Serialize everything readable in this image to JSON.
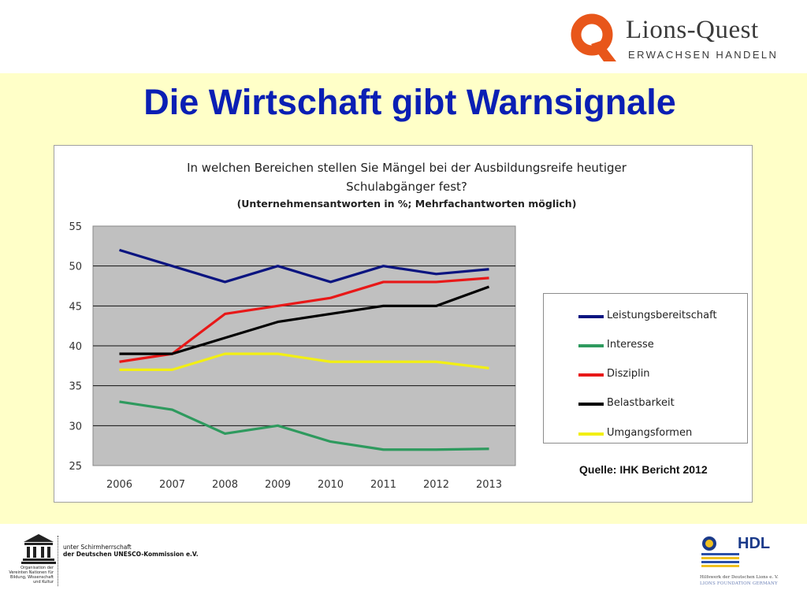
{
  "header": {
    "brand_name": "Lions-Quest",
    "brand_tagline": "ERWACHSEN HANDELN"
  },
  "slide": {
    "title": "Die Wirtschaft gibt Warnsignale",
    "source_note": "Quelle: IHK Bericht 2012"
  },
  "colors": {
    "title": "#0a1fb4",
    "background": "#ffffc8",
    "plot_bg": "#c0c0c0",
    "logo_orange": "#e8561a"
  },
  "chart_data": {
    "type": "line",
    "title": "In welchen Bereichen stellen Sie Mängel bei der Ausbildungsreife heutiger Schulabgänger fest?",
    "subtitle": "(Unternehmensantworten in %; Mehrfachantworten möglich)",
    "categories": [
      "2006",
      "2007",
      "2008",
      "2009",
      "2010",
      "2011",
      "2012",
      "2013"
    ],
    "y_ticks": [
      "25",
      "30",
      "35",
      "40",
      "45",
      "50",
      "55"
    ],
    "ylim": [
      25,
      55
    ],
    "grid": true,
    "legend_position": "right",
    "series": [
      {
        "name": "Leistungsbereitschaft",
        "color": "#0a1480",
        "values": [
          52,
          50,
          48,
          50,
          48,
          50,
          49,
          49.6
        ]
      },
      {
        "name": "Interesse",
        "color": "#2e9a5e",
        "values": [
          33,
          32,
          29,
          30,
          28,
          27,
          27,
          27.1
        ]
      },
      {
        "name": "Disziplin",
        "color": "#e81818",
        "values": [
          38,
          39,
          44,
          45,
          46,
          48,
          48,
          48.5
        ]
      },
      {
        "name": "Belastbarkeit",
        "color": "#000000",
        "values": [
          39,
          39,
          41,
          43,
          44,
          45,
          45,
          47.4
        ]
      },
      {
        "name": "Umgangsformen",
        "color": "#f2ef14",
        "values": [
          37,
          37,
          39,
          39,
          38,
          38,
          38,
          37.2
        ]
      }
    ]
  },
  "footer": {
    "patron_line1": "unter Schirmherrschaft",
    "patron_line2": "der Deutschen UNESCO-Kommission e.V.",
    "unesco_org_text": "Organisation der Vereinten Nationen für Bildung, Wissenschaft und Kultur",
    "hdl_name": "HDL",
    "hdl_line1": "Hilfswerk der Deutschen Lions e. V.",
    "hdl_line2": "LIONS FOUNDATION GERMANY"
  }
}
